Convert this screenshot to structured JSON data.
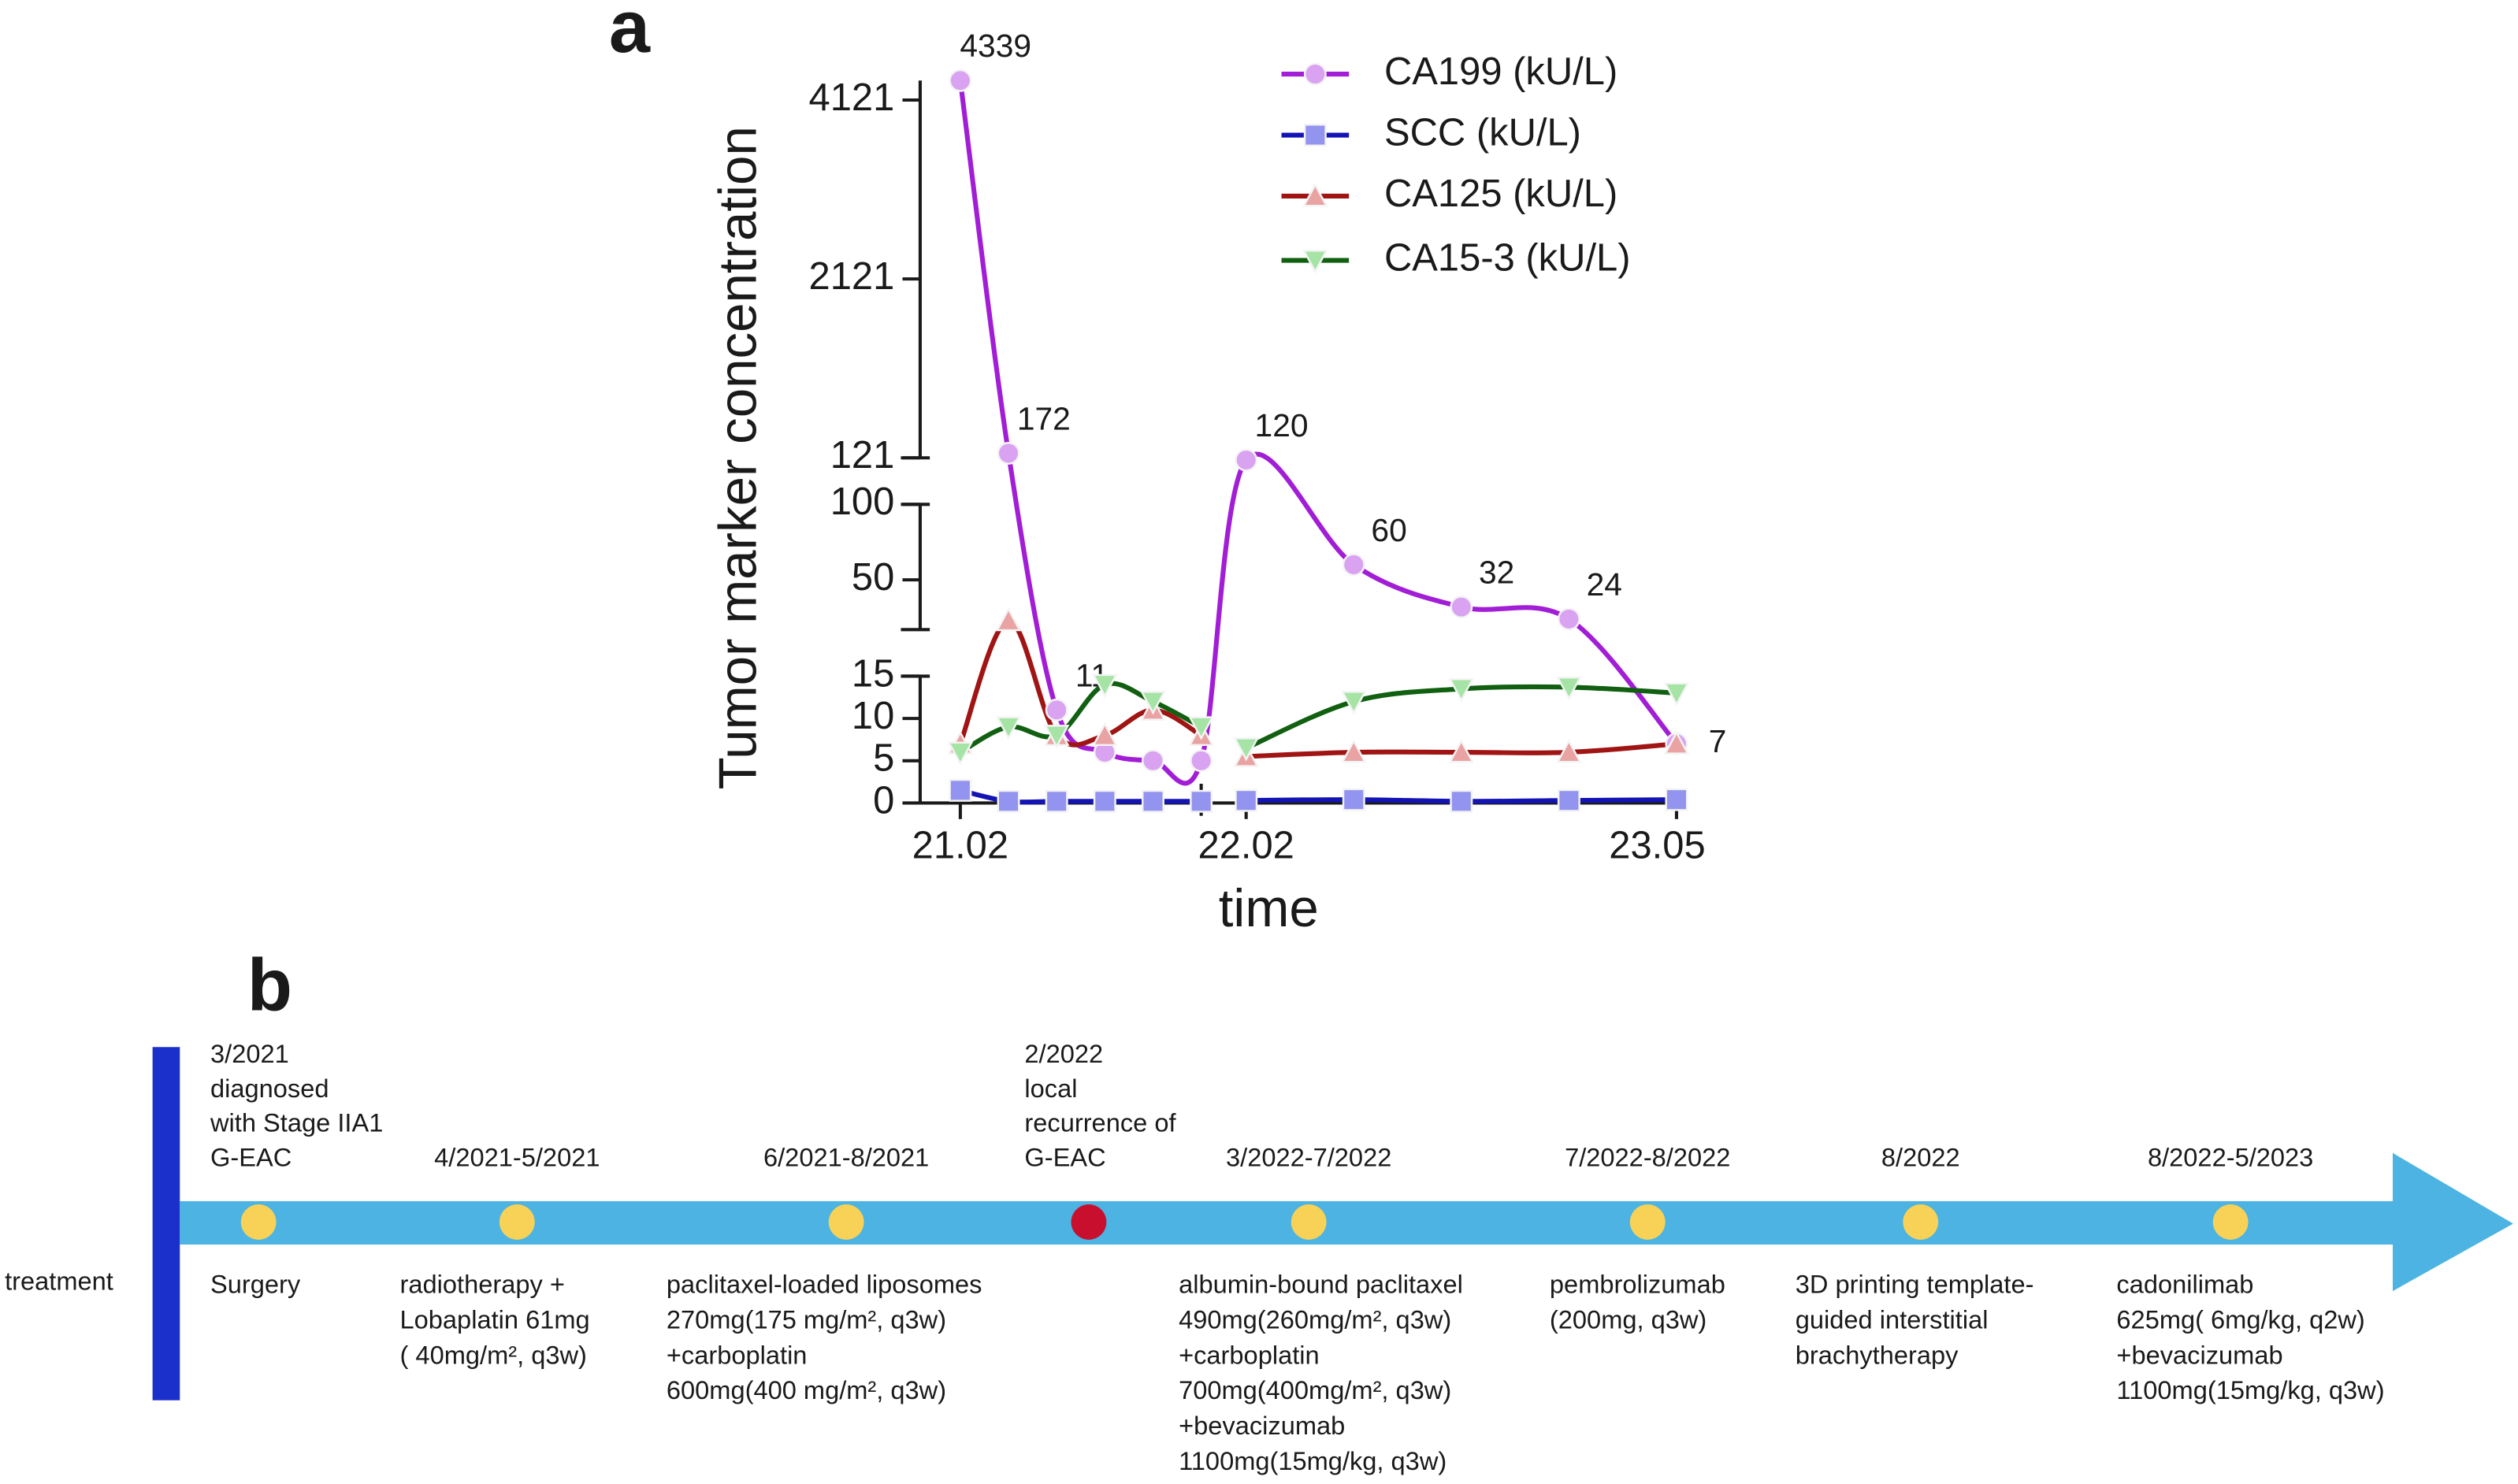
{
  "panel_labels": [
    "a",
    "b"
  ],
  "chart_data": {
    "type": "line",
    "y_label": "Tumor marker concentration",
    "x_label": "time",
    "categories": [
      "21.02",
      null,
      null,
      null,
      null,
      null,
      "22.02",
      null,
      null,
      null,
      "23.05"
    ],
    "x_break_after": 5,
    "ylim": [
      0,
      4339
    ],
    "y_segments": [
      [
        0,
        15
      ],
      [
        17,
        100
      ],
      [
        121,
        4339
      ]
    ],
    "yticks": [
      0,
      5,
      10,
      15,
      50,
      100,
      121,
      2121,
      4121
    ],
    "series": [
      {
        "name": "CA199 (kU/L)",
        "color": "#a21ed6",
        "marker_color": "#d9a3f2",
        "marker": "circle",
        "connect_break": true,
        "values": [
          4339,
          172,
          11,
          6,
          5,
          5,
          120,
          60,
          32,
          24,
          7
        ],
        "show_labels": [
          true,
          true,
          true,
          false,
          false,
          false,
          true,
          true,
          true,
          true,
          true
        ]
      },
      {
        "name": "SCC (kU/L)",
        "color": "#1414b4",
        "marker_color": "#9393f0",
        "marker": "square",
        "connect_break": false,
        "values": [
          1.5,
          0.2,
          0.2,
          0.2,
          0.2,
          0.2,
          0.3,
          0.4,
          0.2,
          0.3,
          0.4
        ]
      },
      {
        "name": "CA125 (kU/L)",
        "color": "#a01414",
        "marker_color": "#eaa3a3",
        "marker": "triangle",
        "connect_break": false,
        "values": [
          7,
          23,
          8,
          8,
          11,
          8,
          5.5,
          6,
          6,
          6,
          7
        ]
      },
      {
        "name": "CA15-3 (kU/L)",
        "color": "#116011",
        "marker_color": "#a6e4a6",
        "marker": "triangle-down",
        "connect_break": false,
        "values": [
          6,
          9,
          8,
          14,
          12,
          9,
          6.5,
          12,
          13.5,
          13.7,
          13
        ]
      }
    ]
  },
  "timeline": {
    "axis_label": "treatment",
    "bar_color": "#4cb3e2",
    "start_color": "#1b2fcb",
    "events": [
      {
        "color": "#f8d256",
        "date_lines": [
          "3/2021",
          "diagnosed",
          "with Stage IIA1",
          "G-EAC"
        ],
        "treatment_lines": [
          "Surgery"
        ]
      },
      {
        "color": "#f8d256",
        "date_lines": [
          "4/2021-5/2021"
        ],
        "treatment_lines": [
          "radiotherapy +",
          "Lobaplatin 61mg",
          "( 40mg/m², q3w)"
        ]
      },
      {
        "color": "#f8d256",
        "date_lines": [
          "6/2021-8/2021"
        ],
        "treatment_lines": [
          "paclitaxel-loaded liposomes",
          "270mg(175 mg/m², q3w)",
          "+carboplatin",
          "600mg(400 mg/m², q3w)"
        ]
      },
      {
        "color": "#c8102e",
        "date_lines": [
          "2/2022",
          "local",
          "recurrence of",
          "G-EAC"
        ]
      },
      {
        "color": "#f8d256",
        "date_lines": [
          "3/2022-7/2022"
        ],
        "treatment_lines": [
          "albumin-bound paclitaxel",
          "490mg(260mg/m², q3w)",
          "+carboplatin",
          "700mg(400mg/m², q3w)",
          "+bevacizumab",
          "1100mg(15mg/kg, q3w)"
        ]
      },
      {
        "color": "#f8d256",
        "date_lines": [
          "7/2022-8/2022"
        ],
        "treatment_lines": [
          "pembrolizumab",
          " (200mg, q3w)"
        ]
      },
      {
        "color": "#f8d256",
        "date_lines": [
          "8/2022"
        ],
        "treatment_lines": [
          "3D printing template-",
          "guided interstitial",
          "brachytherapy"
        ]
      },
      {
        "color": "#f8d256",
        "date_lines": [
          "8/2022-5/2023"
        ],
        "treatment_lines": [
          " cadonilimab",
          "625mg( 6mg/kg, q2w)",
          "+bevacizumab",
          "1100mg(15mg/kg, q3w)"
        ]
      }
    ]
  }
}
